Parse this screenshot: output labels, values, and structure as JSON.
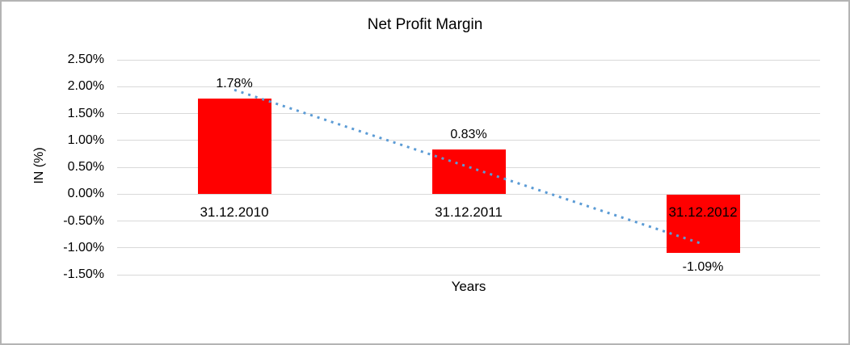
{
  "chart_data": {
    "type": "bar",
    "title": "Net Profit Margin",
    "xlabel": "Years",
    "ylabel": "IN (%)",
    "categories": [
      "31.12.2010",
      "31.12.2011",
      "31.12.2012"
    ],
    "values": [
      1.78,
      0.83,
      -1.09
    ],
    "data_labels": [
      "1.78%",
      "0.83%",
      "-1.09%"
    ],
    "y_ticks": [
      {
        "value": 2.5,
        "label": "2.50%"
      },
      {
        "value": 2.0,
        "label": "2.00%"
      },
      {
        "value": 1.5,
        "label": "1.50%"
      },
      {
        "value": 1.0,
        "label": "1.00%"
      },
      {
        "value": 0.5,
        "label": "0.50%"
      },
      {
        "value": 0.0,
        "label": "0.00%"
      },
      {
        "value": -0.5,
        "label": "-0.50%"
      },
      {
        "value": -1.0,
        "label": "-1.00%"
      },
      {
        "value": -1.5,
        "label": "-1.50%"
      }
    ],
    "ylim": [
      -1.5,
      2.5
    ],
    "grid": true,
    "legend": "none",
    "bar_color": "#FF0000",
    "gridline_color": "#D9D9D9",
    "text_color": "#000000",
    "trendline": {
      "type": "linear",
      "style": "dotted",
      "color": "#5B9BD5",
      "start_value": 1.94,
      "end_value": -0.93
    }
  }
}
